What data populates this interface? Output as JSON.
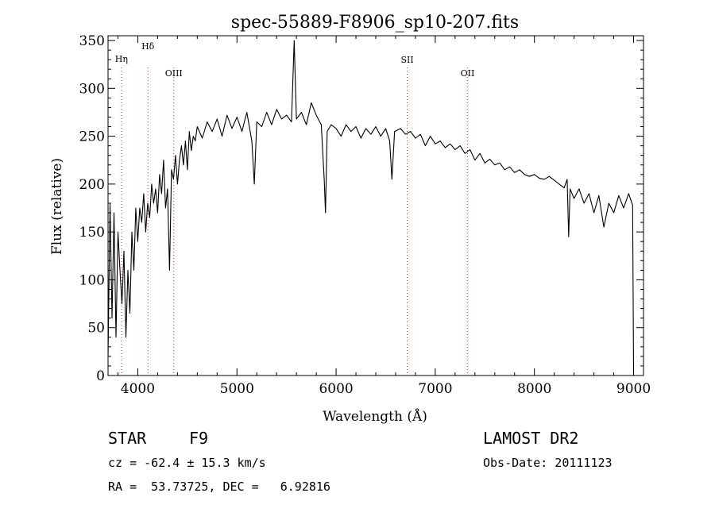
{
  "chart_data": {
    "type": "line",
    "title": "spec-55889-F8906_sp10-207.fits",
    "xlabel": "Wavelength (Å)",
    "ylabel": "Flux (relative)",
    "xlim": [
      3700,
      9100
    ],
    "ylim": [
      0,
      355
    ],
    "xticks": [
      4000,
      5000,
      6000,
      7000,
      8000,
      9000
    ],
    "yticks": [
      0,
      50,
      100,
      150,
      200,
      250,
      300,
      350
    ],
    "grid": false,
    "line_color": "#000000",
    "marker_color": "#cc3333",
    "line_markers": [
      {
        "label": "Hη",
        "x": 3835
      },
      {
        "label": "Hδ",
        "x": 4102
      },
      {
        "label": "OIII",
        "x": 4363
      },
      {
        "label": "SII",
        "x": 6717
      },
      {
        "label": "OII",
        "x": 7325
      }
    ],
    "series": [
      {
        "x": [
          3700,
          3720,
          3740,
          3760,
          3780,
          3800,
          3820,
          3840,
          3860,
          3880,
          3900,
          3920,
          3940,
          3960,
          3980,
          4000,
          4020,
          4040,
          4060,
          4080,
          4100,
          4120,
          4140,
          4160,
          4180,
          4200,
          4220,
          4240,
          4260,
          4280,
          4300,
          4320,
          4340,
          4360,
          4380,
          4400,
          4420,
          4440,
          4460,
          4480,
          4500,
          4520,
          4540,
          4560,
          4580,
          4600,
          4650,
          4700,
          4750,
          4800,
          4850,
          4900,
          4950,
          5000,
          5050,
          5100,
          5150,
          5175,
          5200,
          5250,
          5300,
          5350,
          5400,
          5450,
          5500,
          5550,
          5577,
          5600,
          5650,
          5700,
          5750,
          5800,
          5850,
          5880,
          5893,
          5910,
          5950,
          6000,
          6050,
          6100,
          6150,
          6200,
          6250,
          6300,
          6350,
          6400,
          6450,
          6500,
          6540,
          6563,
          6590,
          6650,
          6700,
          6750,
          6800,
          6850,
          6900,
          6950,
          7000,
          7050,
          7100,
          7150,
          7200,
          7250,
          7300,
          7350,
          7400,
          7450,
          7500,
          7550,
          7600,
          7650,
          7700,
          7750,
          7800,
          7850,
          7900,
          7950,
          8000,
          8050,
          8100,
          8150,
          8200,
          8250,
          8300,
          8330,
          8345,
          8360,
          8400,
          8450,
          8500,
          8550,
          8600,
          8650,
          8700,
          8750,
          8800,
          8850,
          8900,
          8950,
          8990,
          9000
        ],
        "values": [
          20,
          180,
          60,
          170,
          40,
          150,
          110,
          75,
          130,
          40,
          110,
          65,
          150,
          110,
          175,
          140,
          175,
          160,
          190,
          150,
          180,
          165,
          200,
          180,
          195,
          170,
          210,
          190,
          225,
          175,
          195,
          110,
          215,
          205,
          230,
          200,
          225,
          240,
          220,
          245,
          215,
          255,
          235,
          250,
          245,
          260,
          248,
          265,
          255,
          268,
          250,
          272,
          258,
          270,
          255,
          275,
          245,
          200,
          265,
          260,
          275,
          262,
          278,
          268,
          272,
          265,
          350,
          268,
          275,
          262,
          285,
          272,
          262,
          205,
          170,
          255,
          262,
          258,
          250,
          262,
          255,
          260,
          248,
          258,
          252,
          260,
          250,
          258,
          245,
          205,
          255,
          258,
          252,
          255,
          248,
          252,
          240,
          250,
          242,
          245,
          238,
          242,
          236,
          240,
          232,
          236,
          225,
          232,
          222,
          226,
          220,
          222,
          215,
          218,
          212,
          215,
          210,
          208,
          210,
          206,
          205,
          208,
          204,
          200,
          196,
          205,
          145,
          195,
          185,
          195,
          180,
          190,
          170,
          188,
          155,
          180,
          170,
          188,
          175,
          190,
          178,
          5
        ]
      }
    ]
  },
  "info": {
    "object_class": "STAR",
    "subclass": "F9",
    "survey": "LAMOST DR2",
    "redshift_text": "cz = -62.4 ± 15.3 km/s",
    "obs_date": "Obs-Date: 20111123",
    "coords": "RA =  53.73725, DEC =   6.92816"
  }
}
